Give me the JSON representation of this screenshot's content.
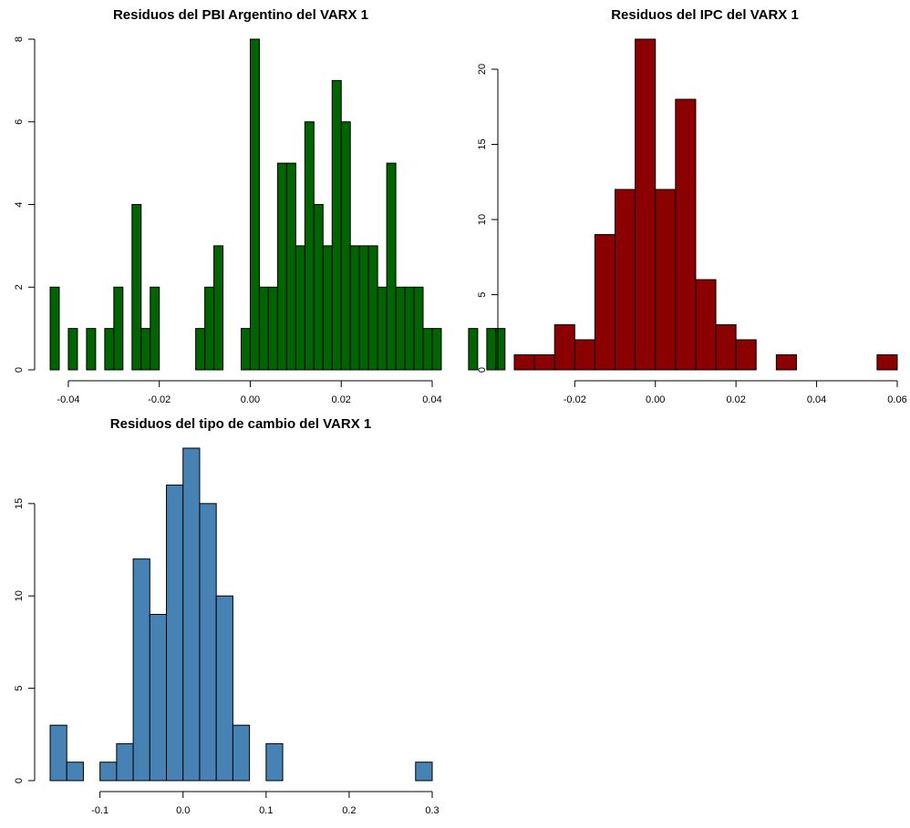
{
  "chart_data": [
    {
      "type": "bar",
      "title": "Residuos del PBI Argentino del VARX 1",
      "xlabel": "",
      "ylabel": "",
      "color": "#006400",
      "bin_width": 0.002,
      "bin_start": -0.044,
      "values": [
        2,
        0,
        1,
        0,
        1,
        0,
        1,
        2,
        0,
        4,
        1,
        2,
        0,
        0,
        0,
        0,
        1,
        2,
        3,
        0,
        0,
        1,
        8,
        2,
        2,
        5,
        5,
        3,
        6,
        4,
        3,
        7,
        6,
        3,
        3,
        3,
        2,
        5,
        2,
        2,
        2,
        1,
        1,
        0,
        0,
        0,
        1,
        0,
        1,
        1
      ],
      "xlim": [
        -0.044,
        0.04
      ],
      "ylim": [
        0,
        8
      ],
      "xticks": [
        -0.04,
        -0.02,
        0.0,
        0.02,
        0.04
      ],
      "xtick_labels": [
        "-0.04",
        "-0.02",
        "0.00",
        "0.02",
        "0.04"
      ],
      "yticks": [
        0,
        2,
        4,
        6,
        8
      ],
      "ytick_labels": [
        "0",
        "2",
        "4",
        "6",
        "8"
      ]
    },
    {
      "type": "bar",
      "title": "Residuos del IPC del VARX 1",
      "xlabel": "",
      "ylabel": "",
      "color": "#8b0000",
      "bin_width": 0.005,
      "bin_start": -0.035,
      "values": [
        1,
        1,
        3,
        2,
        9,
        12,
        22,
        12,
        18,
        6,
        3,
        2,
        0,
        1,
        0,
        0,
        0,
        0,
        1
      ],
      "xlim": [
        -0.035,
        0.06
      ],
      "ylim": [
        0,
        22
      ],
      "xticks": [
        -0.02,
        0.0,
        0.02,
        0.04,
        0.06
      ],
      "xtick_labels": [
        "-0.02",
        "0.00",
        "0.02",
        "0.04",
        "0.06"
      ],
      "yticks": [
        0,
        5,
        10,
        15,
        20
      ],
      "ytick_labels": [
        "0",
        "5",
        "10",
        "15",
        "20"
      ]
    },
    {
      "type": "bar",
      "title": "Residuos del tipo de cambio del VARX 1",
      "xlabel": "",
      "ylabel": "",
      "color": "#4682b4",
      "bin_width": 0.02,
      "bin_start": -0.16,
      "values": [
        3,
        1,
        0,
        1,
        2,
        12,
        9,
        16,
        18,
        15,
        10,
        3,
        0,
        2,
        0,
        0,
        0,
        0,
        0,
        0,
        0,
        0,
        1
      ],
      "xlim": [
        -0.16,
        0.3
      ],
      "ylim": [
        0,
        18
      ],
      "xticks": [
        -0.1,
        0.0,
        0.1,
        0.2,
        0.3
      ],
      "xtick_labels": [
        "-0.1",
        "0.0",
        "0.1",
        "0.2",
        "0.3"
      ],
      "yticks": [
        0,
        5,
        10,
        15
      ],
      "ytick_labels": [
        "0",
        "5",
        "10",
        "15"
      ]
    }
  ]
}
